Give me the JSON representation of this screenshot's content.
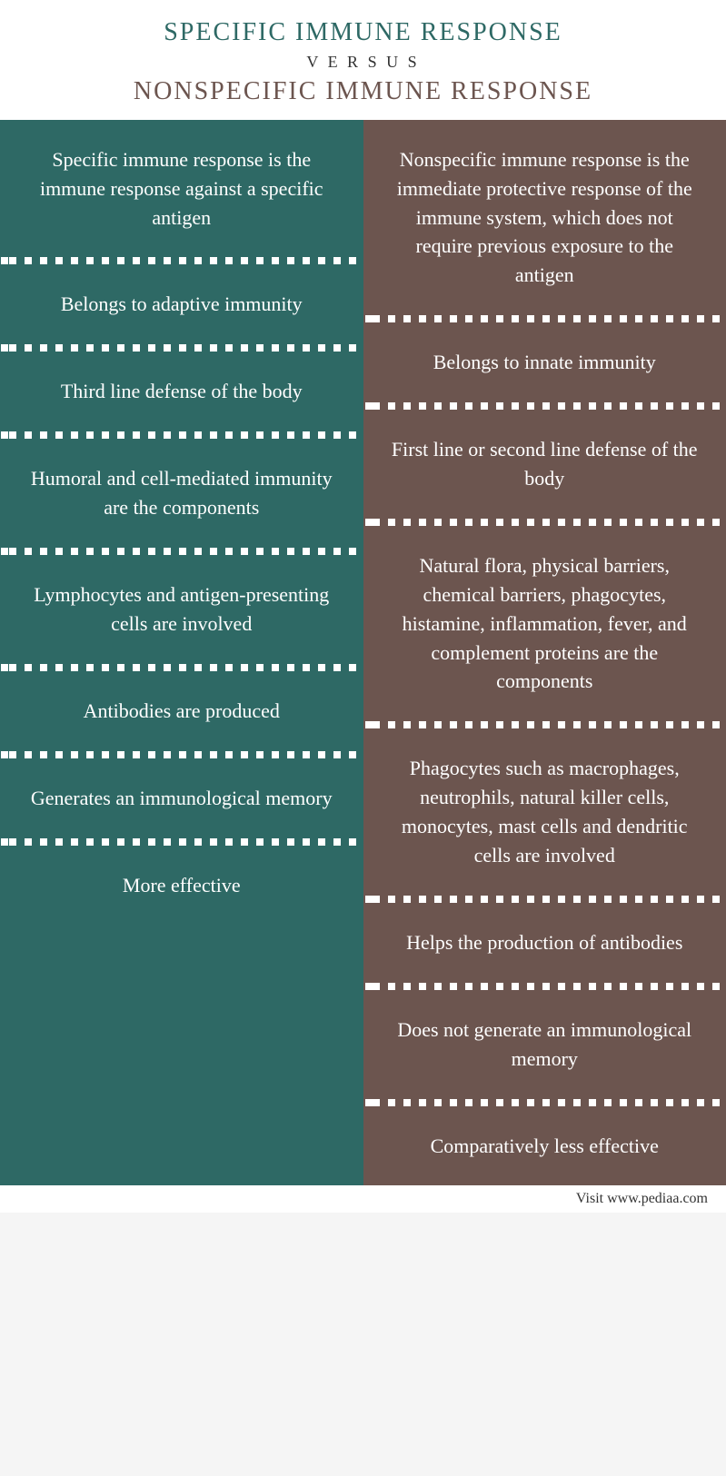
{
  "header": {
    "title1": "SPECIFIC IMMUNE RESPONSE",
    "versus": "V E R S U S",
    "title2": "NONSPECIFIC IMMUNE RESPONSE",
    "title1_color": "#2e6965",
    "title2_color": "#6c554f"
  },
  "columns": {
    "left": {
      "bg_color": "#2e6965",
      "rows": [
        "Specific immune response is the immune response against a specific antigen",
        "Belongs to adaptive immunity",
        "Third line defense of the body",
        "Humoral and cell-mediated immunity are the components",
        "Lymphocytes and antigen-presenting cells are involved",
        "Antibodies are produced",
        "Generates an immunological memory",
        "More effective"
      ]
    },
    "right": {
      "bg_color": "#6c554f",
      "rows": [
        "Nonspecific immune response is the immediate protective response of the immune system, which does not require previous exposure to the antigen",
        "Belongs to innate immunity",
        "First line or second line defense of the body",
        "Natural flora, physical barriers, chemical barriers, phagocytes, histamine, inflammation, fever, and complement proteins are the components",
        "Phagocytes such as macrophages, neutrophils, natural killer cells, monocytes, mast cells and dendritic cells are involved",
        "Helps the production of antibodies",
        "Does not generate an immunological memory",
        "Comparatively less effective"
      ]
    }
  },
  "footer": {
    "text": "Visit www.pediaa.com"
  },
  "style": {
    "text_color": "#ffffff",
    "divider_color": "#ffffff",
    "body_font": "Georgia",
    "title_fontsize": 28,
    "cell_fontsize": 22
  }
}
